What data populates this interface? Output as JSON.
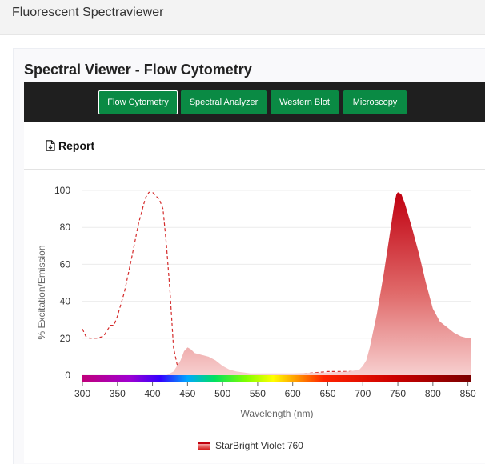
{
  "app": {
    "title": "Fluorescent Spectraviewer"
  },
  "card": {
    "title": "Spectral Viewer - Flow Cytometry"
  },
  "tabs": [
    {
      "label": "Flow Cytometry",
      "active": true
    },
    {
      "label": "Spectral Analyzer",
      "active": false
    },
    {
      "label": "Western Blot",
      "active": false
    },
    {
      "label": "Microscopy",
      "active": false
    }
  ],
  "toolbar": {
    "report_label": "Report",
    "report_icon": "document-icon"
  },
  "colors": {
    "accent": "#0a8a44",
    "emission": "#c8101b",
    "excitation": "#d42a2a",
    "tabbar": "#1f1f1f"
  },
  "chart_data": {
    "type": "area",
    "xlabel": "Wavelength (nm)",
    "ylabel": "% Excitation/Emission",
    "xlim": [
      300,
      855
    ],
    "ylim": [
      0,
      100
    ],
    "x_ticks": [
      300,
      350,
      400,
      450,
      500,
      550,
      600,
      650,
      700,
      750,
      800,
      850
    ],
    "y_ticks": [
      0,
      20,
      40,
      60,
      80,
      100
    ],
    "grid": true,
    "legend_position": "bottom-center",
    "series": [
      {
        "name": "StarBright Violet 760",
        "kind": "excitation",
        "style": "dashed-line",
        "points": [
          [
            300,
            25
          ],
          [
            305,
            21
          ],
          [
            310,
            20
          ],
          [
            320,
            20
          ],
          [
            330,
            21
          ],
          [
            340,
            27
          ],
          [
            345,
            27
          ],
          [
            350,
            32
          ],
          [
            360,
            45
          ],
          [
            370,
            63
          ],
          [
            380,
            82
          ],
          [
            390,
            96
          ],
          [
            395,
            99
          ],
          [
            400,
            99
          ],
          [
            410,
            95
          ],
          [
            415,
            90
          ],
          [
            420,
            70
          ],
          [
            425,
            45
          ],
          [
            430,
            15
          ],
          [
            435,
            6
          ],
          [
            440,
            2
          ],
          [
            450,
            0.5
          ],
          [
            500,
            0.3
          ],
          [
            600,
            0.3
          ],
          [
            650,
            2
          ],
          [
            700,
            2
          ],
          [
            720,
            3
          ],
          [
            730,
            3.5
          ],
          [
            740,
            2.5
          ],
          [
            750,
            1
          ],
          [
            760,
            0.8
          ],
          [
            780,
            0.5
          ],
          [
            800,
            0.4
          ],
          [
            855,
            0.2
          ]
        ]
      },
      {
        "name": "StarBright Violet 760",
        "kind": "emission",
        "style": "filled-area",
        "points": [
          [
            420,
            0
          ],
          [
            430,
            2
          ],
          [
            440,
            8
          ],
          [
            445,
            13
          ],
          [
            450,
            15
          ],
          [
            455,
            14
          ],
          [
            460,
            12
          ],
          [
            470,
            11
          ],
          [
            480,
            10
          ],
          [
            490,
            8
          ],
          [
            500,
            5
          ],
          [
            510,
            3
          ],
          [
            520,
            2
          ],
          [
            540,
            1
          ],
          [
            560,
            1
          ],
          [
            600,
            1
          ],
          [
            650,
            1.5
          ],
          [
            680,
            2
          ],
          [
            695,
            3
          ],
          [
            700,
            5
          ],
          [
            705,
            8
          ],
          [
            710,
            15
          ],
          [
            720,
            33
          ],
          [
            730,
            55
          ],
          [
            740,
            80
          ],
          [
            745,
            93
          ],
          [
            748,
            98
          ],
          [
            750,
            99
          ],
          [
            755,
            98
          ],
          [
            760,
            93
          ],
          [
            770,
            80
          ],
          [
            780,
            66
          ],
          [
            790,
            50
          ],
          [
            800,
            36
          ],
          [
            810,
            29
          ],
          [
            820,
            26
          ],
          [
            830,
            23
          ],
          [
            840,
            21
          ],
          [
            850,
            20
          ],
          [
            855,
            20
          ]
        ]
      }
    ]
  }
}
